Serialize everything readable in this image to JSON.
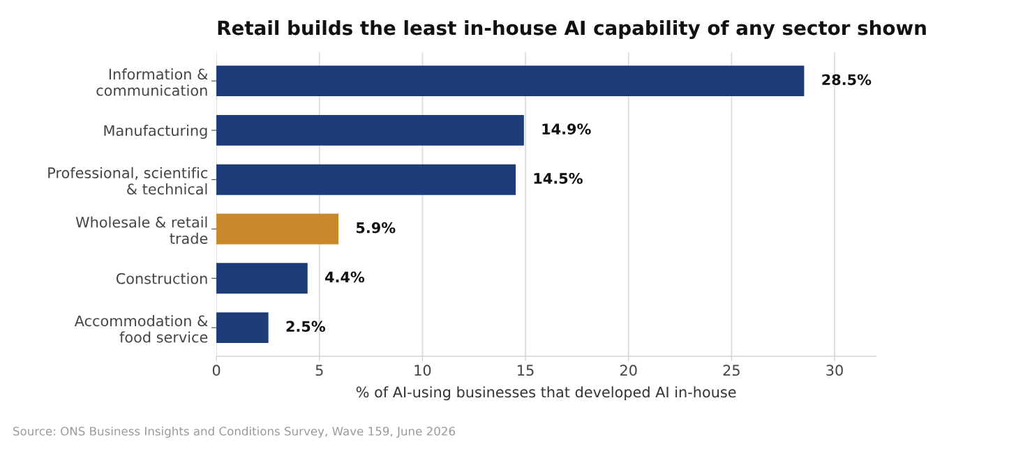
{
  "chart_data": {
    "type": "bar",
    "orientation": "horizontal",
    "title": "Retail builds the least in-house AI capability of any sector shown",
    "xlabel": "% of AI-using businesses that developed AI in-house",
    "categories": [
      "Information &\ncommunication",
      "Manufacturing",
      "Professional, scientific\n& technical",
      "Wholesale & retail\ntrade",
      "Construction",
      "Accommodation &\nfood service"
    ],
    "values": [
      28.5,
      14.9,
      14.5,
      5.9,
      4.4,
      2.5
    ],
    "colors": [
      "#1c3d78",
      "#1c3d78",
      "#1c3d78",
      "#c8892a",
      "#1c3d78",
      "#1c3d78"
    ],
    "value_labels": [
      "28.5%",
      "14.9%",
      "14.5%",
      "5.9%",
      "4.4%",
      "2.5%"
    ],
    "xlim": [
      0,
      32
    ],
    "xticks": [
      0,
      5,
      10,
      15,
      20,
      25,
      30
    ],
    "grid": "x",
    "legend": false,
    "annotations": [
      "Source: ONS Business Insights and Conditions Survey, Wave 159, June 2026"
    ]
  }
}
